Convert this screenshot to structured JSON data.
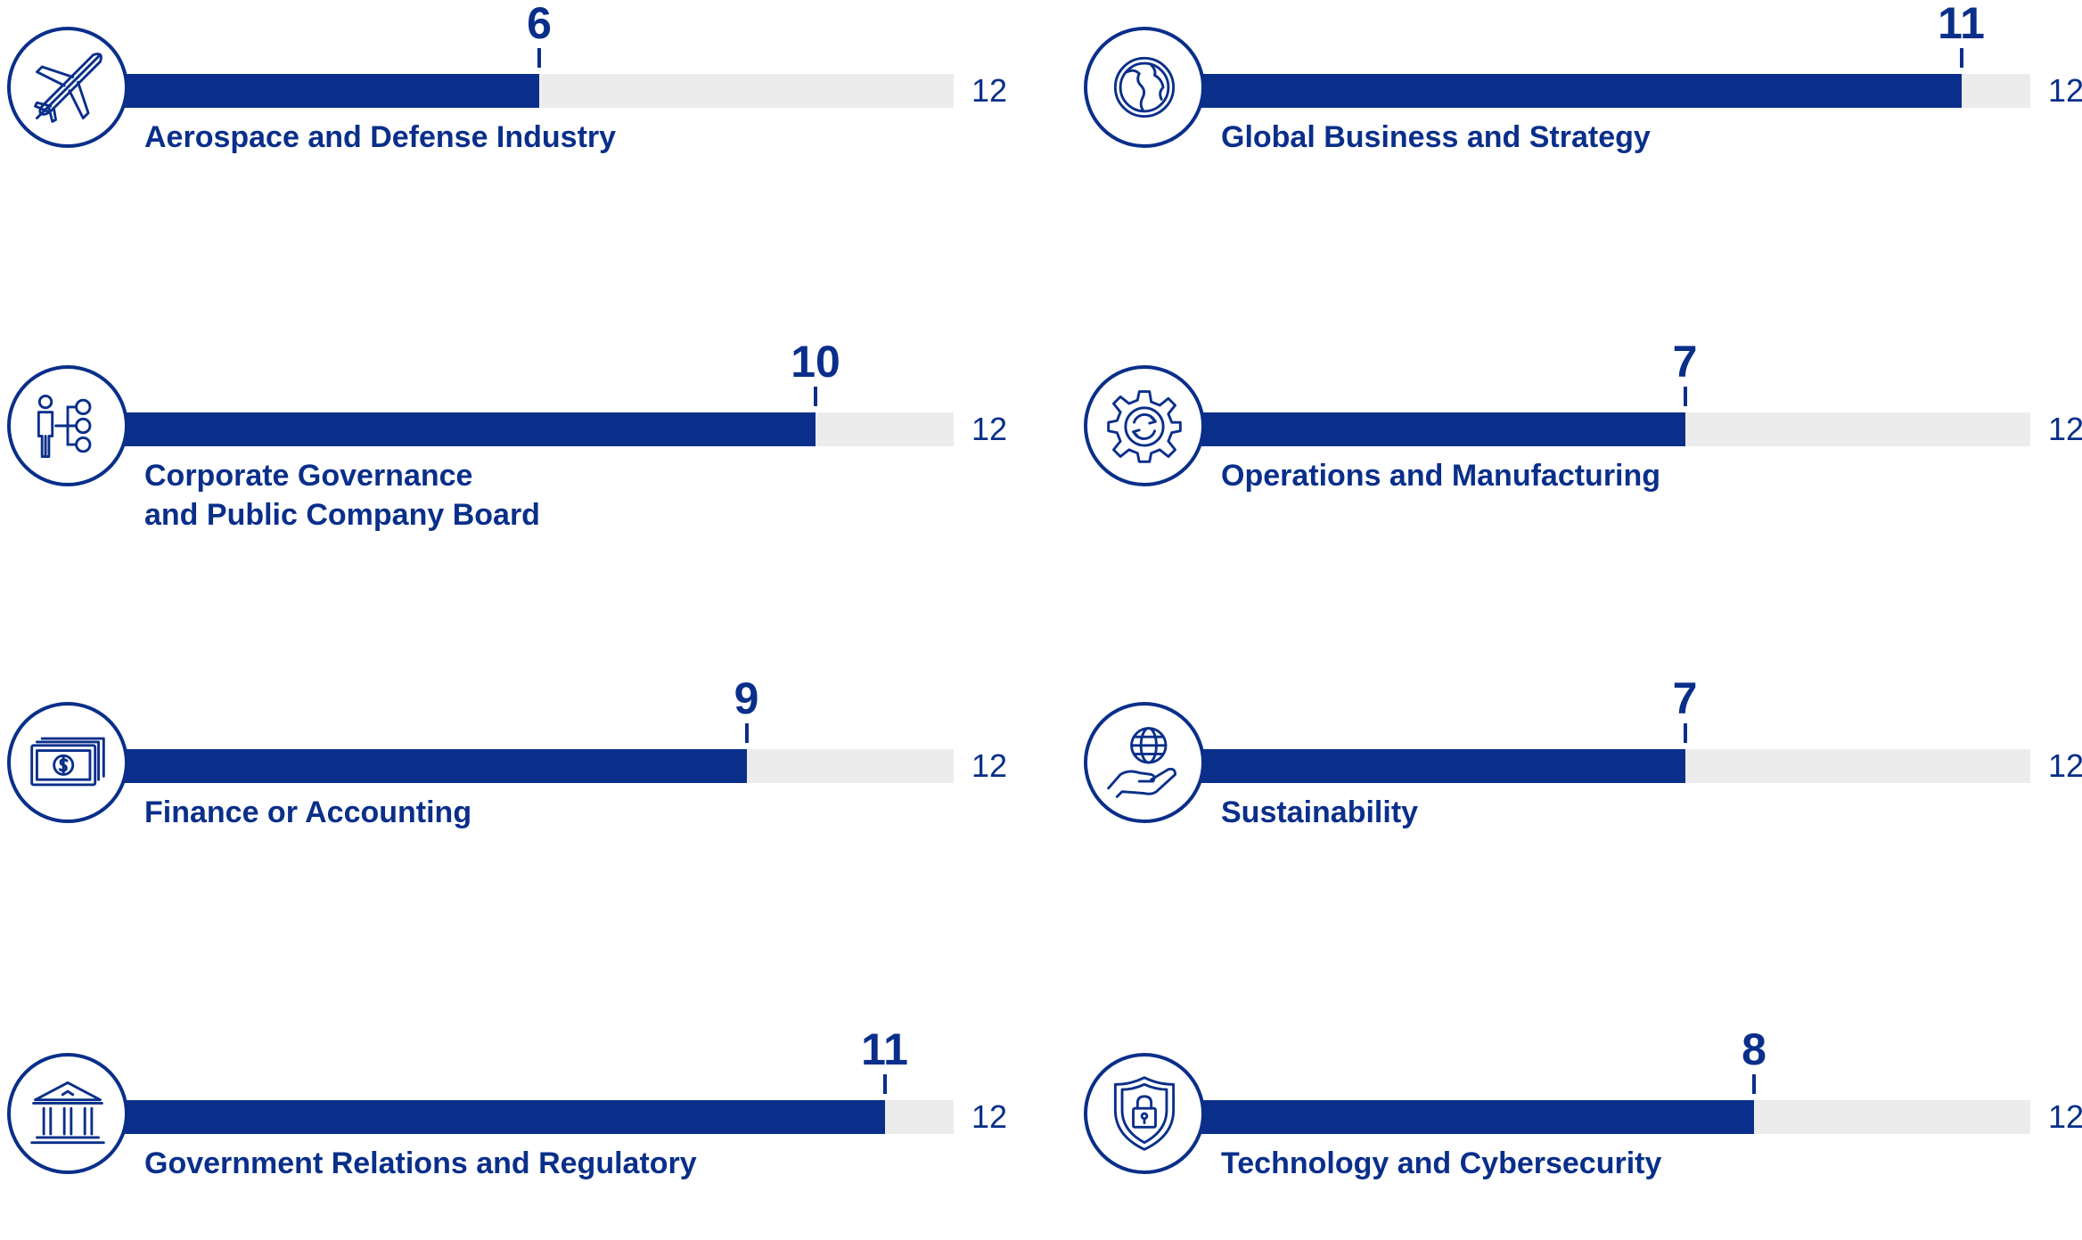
{
  "chart_data": {
    "type": "bar",
    "orientation": "horizontal",
    "xlim": [
      0,
      12
    ],
    "grid": false,
    "categories": [
      "Aerospace and Defense Industry",
      "Global Business and Strategy",
      "Corporate Governance and Public Company Board",
      "Operations and Manufacturing",
      "Finance or Accounting",
      "Sustainability",
      "Government Relations and Regulatory",
      "Technology and Cybersecurity"
    ],
    "items": [
      {
        "label_lines": [
          "Aerospace and Defense Industry"
        ],
        "value": 6,
        "max": 12,
        "icon": "airplane-icon"
      },
      {
        "label_lines": [
          "Global Business and Strategy"
        ],
        "value": 11,
        "max": 12,
        "icon": "globe-icon"
      },
      {
        "label_lines": [
          "Corporate Governance",
          "and Public Company Board"
        ],
        "value": 10,
        "max": 12,
        "icon": "org-chart-icon"
      },
      {
        "label_lines": [
          "Operations and Manufacturing"
        ],
        "value": 7,
        "max": 12,
        "icon": "gear-icon"
      },
      {
        "label_lines": [
          "Finance or Accounting"
        ],
        "value": 9,
        "max": 12,
        "icon": "money-icon"
      },
      {
        "label_lines": [
          "Sustainability"
        ],
        "value": 7,
        "max": 12,
        "icon": "globe-hand-icon"
      },
      {
        "label_lines": [
          "Government Relations and Regulatory"
        ],
        "value": 11,
        "max": 12,
        "icon": "government-building-icon"
      },
      {
        "label_lines": [
          "Technology and Cybersecurity"
        ],
        "value": 8,
        "max": 12,
        "icon": "shield-lock-icon"
      }
    ]
  },
  "colors": {
    "bar": "#0a2f8a",
    "track": "#ececec",
    "text": "#0a2f8a"
  }
}
